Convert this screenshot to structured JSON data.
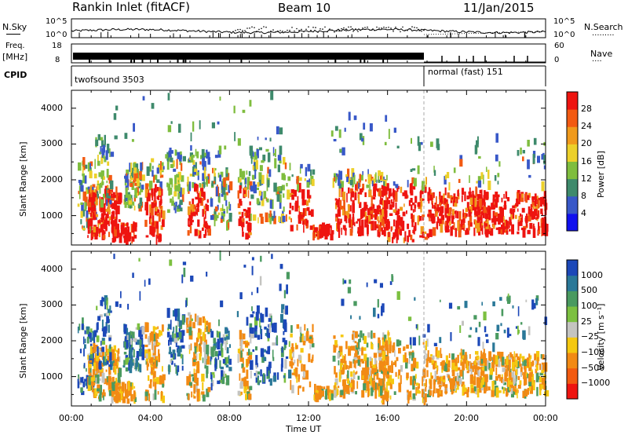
{
  "header": {
    "station": "Rankin Inlet (fitACF)",
    "beam": "Beam 10",
    "date": "11/Jan/2015"
  },
  "nsky_panel": {
    "label": "N.Sky",
    "right_label": "N.Search",
    "right_legend": "·········",
    "left_ticks": [
      "10^5",
      "10^0"
    ],
    "right_ticks": [
      "10^5",
      "10^0"
    ]
  },
  "freq_panel": {
    "label_top": "Freq.",
    "label_bottom": "[MHz]",
    "right_label": "Nave",
    "right_legend": "····",
    "left_ticks": [
      "18",
      "8"
    ],
    "right_ticks": [
      "60",
      "0"
    ]
  },
  "cpid_panel": {
    "label": "CPID",
    "segments": [
      {
        "name": "twofsound 3503",
        "start_h": 0,
        "end_h": 18
      },
      {
        "name": "normal (fast) 151",
        "start_h": 18,
        "end_h": 24
      }
    ]
  },
  "chart_data": [
    {
      "type": "heatmap",
      "title": "Power",
      "xlabel": "",
      "ylabel": "Slant Range [km]",
      "xlim": [
        0,
        24
      ],
      "ylim": [
        180,
        4500
      ],
      "y_ticks": [
        "1000",
        "2000",
        "3000",
        "4000"
      ],
      "colorbar_label": "Power [dB]",
      "colorbar_ticks": [
        "4",
        "8",
        "12",
        "16",
        "20",
        "24",
        "28"
      ],
      "colorbar_colors": [
        "#1010ee",
        "#3858c8",
        "#3e8a6c",
        "#7fbd3e",
        "#ecd02a",
        "#f09a1c",
        "#f25a12",
        "#ee1410"
      ],
      "scatter_regions": [
        {
          "t_h": 1.5,
          "r_km": 1200,
          "power_db": 28
        },
        {
          "t_h": 4.0,
          "r_km": 2000,
          "power_db": 20
        },
        {
          "t_h": 6.5,
          "r_km": 1800,
          "power_db": 16
        },
        {
          "t_h": 9.0,
          "r_km": 2000,
          "power_db": 24
        },
        {
          "t_h": 12.5,
          "r_km": 1300,
          "power_db": 28
        },
        {
          "t_h": 16.0,
          "r_km": 900,
          "power_db": 28
        },
        {
          "t_h": 22.0,
          "r_km": 1100,
          "power_db": 28
        }
      ]
    },
    {
      "type": "heatmap",
      "title": "Velocity",
      "xlabel": "Time UT",
      "ylabel": "Slant Range [km]",
      "xlim": [
        0,
        24
      ],
      "ylim": [
        180,
        4500
      ],
      "x_ticks": [
        "00:00",
        "04:00",
        "08:00",
        "12:00",
        "16:00",
        "20:00",
        "00:00"
      ],
      "y_ticks": [
        "1000",
        "2000",
        "3000",
        "4000"
      ],
      "colorbar_label": "Velocity [m s⁻¹]",
      "colorbar_ticks": [
        "1000",
        "500",
        "100",
        "25",
        "−25",
        "−100",
        "−500",
        "−1000"
      ],
      "colorbar_colors": [
        "#1c48b8",
        "#2a7898",
        "#4a9a60",
        "#7cc040",
        "#c4c4c0",
        "#f5c810",
        "#f28a14",
        "#f25a10",
        "#ee1410"
      ],
      "scatter_regions": [
        {
          "t_h": 1.5,
          "r_km": 1200,
          "velocity_ms": 100
        },
        {
          "t_h": 4.5,
          "r_km": 2000,
          "velocity_ms": 500
        },
        {
          "t_h": 7.0,
          "r_km": 1800,
          "velocity_ms": 100
        },
        {
          "t_h": 13.5,
          "r_km": 2000,
          "velocity_ms": -100
        },
        {
          "t_h": 17.0,
          "r_km": 1200,
          "velocity_ms": -100
        },
        {
          "t_h": 22.0,
          "r_km": 1100,
          "velocity_ms": -100
        }
      ]
    }
  ]
}
